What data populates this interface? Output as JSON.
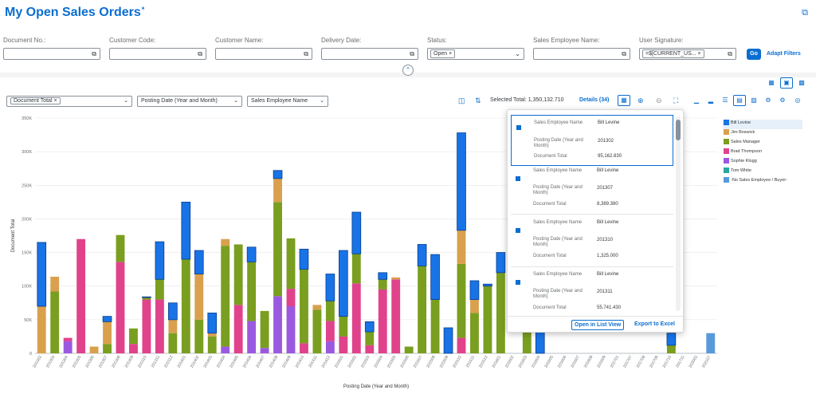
{
  "header": {
    "title": "My Open Sales Orders",
    "dirty_marker": "*"
  },
  "filters": [
    {
      "label": "Document No.:",
      "value": ""
    },
    {
      "label": "Customer Code:",
      "value": ""
    },
    {
      "label": "Customer Name:",
      "value": ""
    },
    {
      "label": "Delivery Date:",
      "value": ""
    },
    {
      "label": "Status:",
      "token": "Open"
    },
    {
      "label": "Sales Employee Name:",
      "value": ""
    },
    {
      "label": "User Signature:",
      "token": "=$[CURRENT_US..."
    }
  ],
  "buttons": {
    "go": "Go",
    "adapt_filters": "Adapt Filters"
  },
  "chart_toolbar": {
    "measure_token": "Document Total",
    "dim1": "Posting Date (Year and Month)",
    "dim2": "Sales Employee Name",
    "selected_total": "Selected Total: 1,350,132.710",
    "details": "Details (34)"
  },
  "legend": [
    {
      "name": "Bill Levine",
      "color": "#1873e6"
    },
    {
      "name": "Jim Boswick",
      "color": "#d9a04e"
    },
    {
      "name": "Sales Manager",
      "color": "#7a9e1f"
    },
    {
      "name": "Brad Thompson",
      "color": "#e0428c"
    },
    {
      "name": "Sophie Klogg",
      "color": "#9b59e0"
    },
    {
      "name": "Tom White",
      "color": "#2aa8a0"
    },
    {
      "name": "-No Sales Employee / Buyer-",
      "color": "#5899da"
    }
  ],
  "popover": {
    "items": [
      {
        "k1": "Sales Employee Name",
        "v1": "Bill Levine",
        "k2": "Posting Date (Year and Month)",
        "v2": "201302",
        "k3": "Document Total",
        "v3": "95,162.830"
      },
      {
        "k1": "Sales Employee Name",
        "v1": "Bill Levine",
        "k2": "Posting Date (Year and Month)",
        "v2": "201307",
        "k3": "Document Total",
        "v3": "8,389.380"
      },
      {
        "k1": "Sales Employee Name",
        "v1": "Bill Levine",
        "k2": "Posting Date (Year and Month)",
        "v2": "201310",
        "k3": "Document Total",
        "v3": "1,325.000"
      },
      {
        "k1": "Sales Employee Name",
        "v1": "Bill Levine",
        "k2": "Posting Date (Year and Month)",
        "v2": "201311",
        "k3": "Document Total",
        "v3": "55,741.430"
      }
    ],
    "open_list": "Open in List View",
    "export": "Export to Excel"
  },
  "chart_data": {
    "type": "bar",
    "stacked": true,
    "xlabel": "Posting Date (Year and Month)",
    "ylabel": "Document Total",
    "ylim": [
      0,
      350000
    ],
    "y_ticks": [
      "0",
      "50K",
      "100K",
      "150K",
      "200K",
      "250K",
      "300K",
      "350K"
    ],
    "categories": [
      "201302",
      "201303",
      "201304",
      "201305",
      "201306",
      "201307",
      "201308",
      "201309",
      "201310",
      "201311",
      "201312",
      "201401",
      "201402",
      "201403",
      "201404",
      "201405",
      "201406",
      "201407",
      "201408",
      "201409",
      "201410",
      "201411",
      "201412",
      "201501",
      "201502",
      "201503",
      "201504",
      "201505",
      "201506",
      "201507",
      "201508",
      "201509",
      "201510",
      "201511",
      "201512",
      "201601",
      "201602",
      "201603",
      "201604",
      "201605",
      "201606",
      "201607",
      "201608",
      "201609",
      "201701",
      "201707",
      "201708",
      "201709",
      "201710",
      "201711",
      "202003",
      "202107"
    ],
    "series": [
      {
        "name": "Bill Levine",
        "color": "#1873e6",
        "values": [
          95000,
          0,
          0,
          0,
          0,
          8000,
          0,
          0,
          1000,
          56000,
          25000,
          85000,
          35000,
          30000,
          0,
          0,
          22000,
          0,
          12000,
          0,
          30000,
          0,
          40000,
          98000,
          62000,
          15000,
          10000,
          0,
          0,
          32000,
          67000,
          38000,
          145000,
          28000,
          3000,
          30000,
          0,
          0,
          70000,
          0,
          0,
          0,
          0,
          0,
          0,
          0,
          0,
          0,
          18000,
          0,
          0,
          0
        ]
      },
      {
        "name": "Jim Boswick",
        "color": "#d9a04e",
        "values": [
          70000,
          22000,
          0,
          0,
          10000,
          33000,
          0,
          0,
          0,
          0,
          20000,
          0,
          68000,
          5000,
          10000,
          0,
          0,
          0,
          35000,
          0,
          0,
          7000,
          0,
          0,
          0,
          0,
          0,
          3000,
          0,
          0,
          0,
          0,
          50000,
          20000,
          0,
          0,
          0,
          0,
          0,
          0,
          0,
          0,
          0,
          0,
          0,
          0,
          0,
          0,
          0,
          0,
          0,
          0
        ]
      },
      {
        "name": "Sales Manager",
        "color": "#7a9e1f",
        "values": [
          0,
          92000,
          0,
          0,
          0,
          14000,
          40000,
          23000,
          3000,
          30000,
          30000,
          140000,
          50000,
          25000,
          150000,
          90000,
          88000,
          55000,
          140000,
          75000,
          110000,
          65000,
          30000,
          30000,
          44000,
          20000,
          15000,
          0,
          10000,
          130000,
          80000,
          0,
          110000,
          60000,
          100000,
          120000,
          0,
          60000,
          0,
          0,
          0,
          0,
          0,
          0,
          0,
          0,
          0,
          0,
          12000,
          0,
          0,
          0
        ]
      },
      {
        "name": "Brad Thompson",
        "color": "#e0428c",
        "values": [
          0,
          0,
          5000,
          170000,
          0,
          0,
          136000,
          14000,
          80000,
          80000,
          0,
          0,
          0,
          0,
          0,
          72000,
          0,
          0,
          0,
          26000,
          15000,
          0,
          30000,
          25000,
          104000,
          12000,
          95000,
          110000,
          0,
          0,
          0,
          0,
          23000,
          0,
          0,
          0,
          0,
          0,
          0,
          0,
          0,
          0,
          0,
          0,
          0,
          0,
          0,
          0,
          0,
          0,
          0,
          0
        ]
      },
      {
        "name": "Sophie Klogg",
        "color": "#9b59e0",
        "values": [
          0,
          0,
          18000,
          0,
          0,
          0,
          0,
          0,
          0,
          0,
          0,
          0,
          0,
          0,
          10000,
          0,
          48000,
          8000,
          85000,
          70000,
          0,
          0,
          18000,
          0,
          0,
          0,
          0,
          0,
          0,
          0,
          0,
          0,
          0,
          0,
          0,
          0,
          0,
          0,
          0,
          0,
          0,
          0,
          0,
          0,
          0,
          0,
          0,
          0,
          0,
          0,
          0,
          0
        ]
      },
      {
        "name": "Tom White",
        "color": "#2aa8a0",
        "values": [
          0,
          0,
          0,
          0,
          0,
          0,
          0,
          0,
          0,
          0,
          0,
          0,
          0,
          0,
          0,
          0,
          0,
          0,
          0,
          0,
          0,
          0,
          0,
          0,
          0,
          0,
          0,
          0,
          0,
          0,
          0,
          0,
          0,
          0,
          0,
          0,
          0,
          0,
          0,
          0,
          0,
          0,
          0,
          0,
          0,
          0,
          0,
          0,
          0,
          0,
          0,
          0
        ]
      },
      {
        "name": "-No Sales Employee / Buyer-",
        "color": "#5899da",
        "values": [
          0,
          0,
          0,
          0,
          0,
          0,
          0,
          0,
          0,
          0,
          0,
          0,
          0,
          0,
          0,
          0,
          0,
          0,
          0,
          0,
          0,
          0,
          0,
          0,
          0,
          0,
          0,
          0,
          0,
          0,
          0,
          0,
          0,
          0,
          0,
          0,
          0,
          0,
          0,
          0,
          0,
          0,
          0,
          0,
          0,
          0,
          0,
          0,
          0,
          0,
          0,
          30000
        ]
      }
    ],
    "legend_position": "right",
    "grid": true
  }
}
